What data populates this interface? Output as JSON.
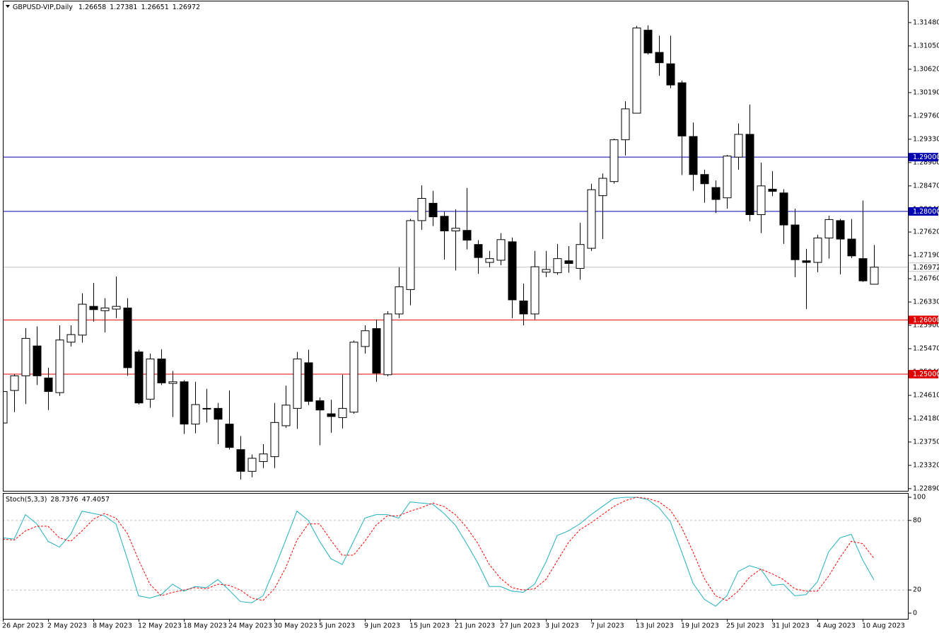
{
  "chart_data": [
    {
      "type": "candlestick",
      "title": "GBPUSD-VIP,Daily",
      "x": [
        "26 Apr 2023",
        null,
        null,
        null,
        "2 May 2023",
        null,
        null,
        null,
        "8 May 2023",
        null,
        null,
        null,
        "12 May 2023",
        null,
        null,
        null,
        "18 May 2023",
        null,
        null,
        null,
        "24 May 2023",
        null,
        null,
        null,
        "30 May 2023",
        null,
        null,
        null,
        "5 Jun 2023",
        null,
        null,
        null,
        "9 Jun 2023",
        null,
        null,
        null,
        "15 Jun 2023",
        null,
        null,
        null,
        "21 Jun 2023",
        null,
        null,
        null,
        "27 Jun 2023",
        null,
        null,
        null,
        "3 Jul 2023",
        null,
        null,
        null,
        "7 Jul 2023",
        null,
        null,
        null,
        "13 Jul 2023",
        null,
        null,
        null,
        "19 Jul 2023",
        null,
        null,
        null,
        "25 Jul 2023",
        null,
        null,
        null,
        "31 Jul 2023",
        null,
        null,
        null,
        "4 Aug 2023",
        null,
        null,
        null,
        "10 Aug 2023",
        null
      ],
      "open": [
        1.241,
        1.247,
        1.2497,
        1.2552,
        1.2493,
        1.2466,
        1.2559,
        1.2572,
        1.2625,
        1.2617,
        1.262,
        1.2622,
        1.2541,
        1.2454,
        1.2528,
        1.2483,
        1.2486,
        1.2408,
        1.2437,
        1.2437,
        1.2408,
        1.2361,
        1.2321,
        1.2339,
        1.2348,
        1.2405,
        1.2437,
        1.2521,
        1.2451,
        1.2427,
        1.242,
        1.243,
        1.2551,
        1.2584,
        1.2499,
        1.2611,
        1.2656,
        1.2783,
        1.2815,
        1.2791,
        1.2764,
        1.2765,
        1.2739,
        1.2706,
        1.271,
        1.2744,
        1.2635,
        1.2611,
        1.2688,
        1.2687,
        1.2709,
        1.2695,
        1.2732,
        1.2829,
        1.2855,
        1.2932,
        1.2981,
        1.3134,
        1.3093,
        1.3072,
        1.3037,
        1.2938,
        1.2868,
        1.2844,
        1.2825,
        1.29,
        1.2942,
        1.2794,
        1.2841,
        1.2834,
        1.2775,
        1.2709,
        1.2706,
        1.2751,
        1.2783,
        1.2749,
        1.2713,
        1.26658
      ],
      "high": [
        1.2505,
        1.25,
        1.2585,
        1.2588,
        1.2512,
        1.259,
        1.259,
        1.2649,
        1.2668,
        1.264,
        1.268,
        1.264,
        1.2545,
        1.2538,
        1.2546,
        1.2506,
        1.2489,
        1.2486,
        1.2473,
        1.2447,
        1.247,
        1.2386,
        1.2352,
        1.2371,
        1.2447,
        1.2479,
        1.2541,
        1.2545,
        1.2457,
        1.2453,
        1.2499,
        1.2562,
        1.259,
        1.2601,
        1.2616,
        1.2697,
        1.2786,
        1.2848,
        1.2838,
        1.2799,
        1.2804,
        1.2843,
        1.2747,
        1.2727,
        1.276,
        1.2752,
        1.2667,
        1.2727,
        1.2727,
        1.274,
        1.2736,
        1.2779,
        1.2851,
        1.287,
        1.2934,
        1.3003,
        1.3142,
        1.3143,
        1.3124,
        1.3124,
        1.3041,
        1.2964,
        1.2877,
        1.2857,
        1.2904,
        1.2962,
        1.2997,
        1.289,
        1.2874,
        1.2841,
        1.2805,
        1.2731,
        1.2757,
        1.2792,
        1.2786,
        1.2786,
        1.282,
        1.27381
      ],
      "low": [
        1.2405,
        1.243,
        1.2445,
        1.248,
        1.2434,
        1.246,
        1.2551,
        1.2558,
        1.2597,
        1.2577,
        1.2603,
        1.2497,
        1.2444,
        1.2438,
        1.248,
        1.2421,
        1.239,
        1.2391,
        1.2411,
        1.2371,
        1.2361,
        1.2306,
        1.231,
        1.2327,
        1.2327,
        1.2401,
        1.2399,
        1.2443,
        1.2369,
        1.2392,
        1.24,
        1.2427,
        1.2538,
        1.2486,
        1.2496,
        1.2603,
        1.2627,
        1.2766,
        1.2773,
        1.2711,
        1.2691,
        1.273,
        1.2685,
        1.2697,
        1.2701,
        1.2603,
        1.259,
        1.2601,
        1.2679,
        1.2683,
        1.2687,
        1.2674,
        1.2727,
        1.2749,
        1.2851,
        1.2903,
        1.2981,
        1.3089,
        1.305,
        1.3027,
        1.2867,
        1.2838,
        1.2816,
        1.2797,
        1.2805,
        1.2877,
        1.2782,
        1.276,
        1.2828,
        1.274,
        1.2679,
        1.262,
        1.2688,
        1.2713,
        1.2684,
        1.2714,
        1.267,
        1.26651
      ],
      "close": [
        1.2468,
        1.2497,
        1.2566,
        1.2497,
        1.2468,
        1.2563,
        1.2573,
        1.2629,
        1.2619,
        1.2622,
        1.2625,
        1.2512,
        1.2447,
        1.2528,
        1.2484,
        1.2486,
        1.2408,
        1.2444,
        1.2437,
        1.2417,
        1.2365,
        1.2321,
        1.2345,
        1.2353,
        1.2411,
        1.2443,
        1.2528,
        1.245,
        1.2434,
        1.2422,
        1.2437,
        1.2559,
        1.258,
        1.2502,
        1.2611,
        1.2661,
        1.2783,
        1.2824,
        1.279,
        1.2764,
        1.2769,
        1.2747,
        1.2715,
        1.2713,
        1.2748,
        1.2637,
        1.2611,
        1.2698,
        1.2693,
        1.2713,
        1.2704,
        1.2739,
        1.284,
        1.2861,
        1.2932,
        1.2989,
        1.3138,
        1.3092,
        1.3074,
        1.3033,
        1.2939,
        1.2868,
        1.2851,
        1.2822,
        1.2902,
        1.2942,
        1.2794,
        1.2847,
        1.2837,
        1.2775,
        1.2711,
        1.2706,
        1.2751,
        1.2785,
        1.2749,
        1.2718,
        1.2672,
        1.26972
      ],
      "up_color": "#ffffff",
      "down_color": "#000000",
      "current_line_color": "#c0c0c0",
      "ylim": [
        1.2285,
        1.3187
      ],
      "yticks": [
        {
          "value": 1.3148,
          "label": "1.31480"
        },
        {
          "value": 1.3105,
          "label": "1.31050"
        },
        {
          "value": 1.3062,
          "label": "1.30620"
        },
        {
          "value": 1.3019,
          "label": "1.30190"
        },
        {
          "value": 1.2976,
          "label": "1.29760"
        },
        {
          "value": 1.2933,
          "label": "1.29330"
        },
        {
          "value": 1.289,
          "label": "1.28900"
        },
        {
          "value": 1.2847,
          "label": "1.28470"
        },
        {
          "value": 1.2804,
          "label": "1.28040"
        },
        {
          "value": 1.2762,
          "label": "1.27620"
        },
        {
          "value": 1.2719,
          "label": "1.27190"
        },
        {
          "value": 1.2676,
          "label": "1.26760"
        },
        {
          "value": 1.2633,
          "label": "1.26330"
        },
        {
          "value": 1.259,
          "label": "1.25900"
        },
        {
          "value": 1.2547,
          "label": "1.25470"
        },
        {
          "value": 1.2504,
          "label": "1.25040"
        },
        {
          "value": 1.2461,
          "label": "1.24610"
        },
        {
          "value": 1.2418,
          "label": "1.24180"
        },
        {
          "value": 1.2375,
          "label": "1.23750"
        },
        {
          "value": 1.2332,
          "label": "1.23320"
        },
        {
          "value": 1.2289,
          "label": "1.22890"
        }
      ],
      "hlines": [
        {
          "value": 1.29,
          "label": "1.29000",
          "color": "#0000b0"
        },
        {
          "value": 1.28,
          "label": "1.28000",
          "color": "#0000b0"
        },
        {
          "value": 1.26,
          "label": "1.26000",
          "color": "#e00000"
        },
        {
          "value": 1.25,
          "label": "1.25000",
          "color": "#e00000"
        }
      ]
    },
    {
      "type": "line",
      "title": "Stoch(5,3,3)",
      "series": [
        {
          "color": "#20b0c0",
          "dash": false,
          "values": [
            65,
            64,
            85,
            77,
            62,
            57,
            68,
            88,
            86,
            84,
            77,
            47,
            15,
            13,
            16,
            25,
            19,
            23,
            22,
            29,
            20,
            10,
            9,
            15,
            38,
            63,
            88,
            80,
            62,
            47,
            42,
            62,
            82,
            85,
            85,
            82,
            96,
            95,
            94,
            86,
            76,
            60,
            43,
            23,
            23,
            19,
            18,
            25,
            44,
            67,
            71,
            77,
            85,
            92,
            99,
            100,
            100,
            98,
            91,
            79,
            53,
            26,
            12,
            6,
            15,
            36,
            41,
            38,
            24,
            25,
            15,
            16,
            27,
            53,
            65,
            68,
            46,
            28.7376
          ]
        },
        {
          "color": "#ff0000",
          "dash": true,
          "values": [
            64,
            63,
            71,
            75,
            75,
            65,
            62,
            71,
            81,
            86,
            82,
            69,
            46,
            25,
            15,
            18,
            20,
            22,
            21,
            25,
            24,
            20,
            13,
            11,
            21,
            39,
            63,
            77,
            77,
            63,
            50,
            50,
            62,
            76,
            84,
            84,
            88,
            91,
            95,
            92,
            85,
            74,
            60,
            42,
            30,
            22,
            20,
            21,
            29,
            45,
            61,
            72,
            78,
            85,
            92,
            97,
            100,
            99,
            96,
            89,
            74,
            53,
            30,
            15,
            11,
            19,
            31,
            38,
            34,
            29,
            21,
            19,
            19,
            32,
            48,
            62,
            60,
            47.4057
          ]
        }
      ],
      "ylim": [
        -4.9,
        103.7
      ],
      "yticks": [
        100,
        80,
        20,
        0
      ],
      "levels": [
        80,
        20
      ]
    }
  ]
}
